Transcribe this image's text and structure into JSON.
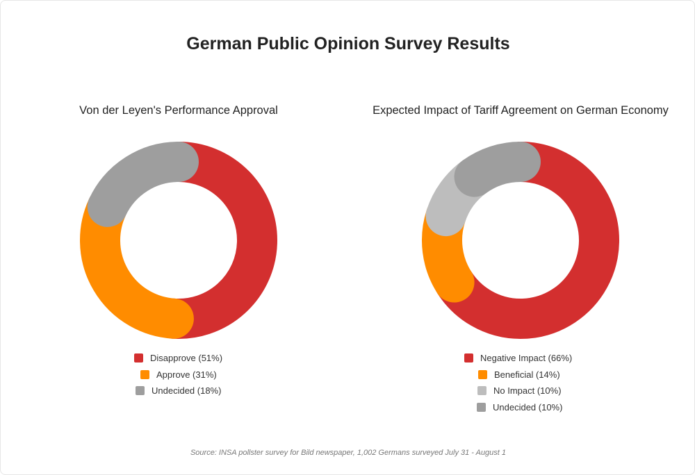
{
  "page": {
    "title": "German Public Opinion Survey Results",
    "source": "Source: INSA pollster survey for Bild newspaper, 1,002 Germans surveyed July 31 - August 1"
  },
  "chart_data": [
    {
      "type": "pie",
      "subtype": "donut",
      "title": "Von der Leyen's Performance Approval",
      "categories": [
        "Disapprove",
        "Approve",
        "Undecided"
      ],
      "values": [
        51,
        31,
        18
      ],
      "unit": "%",
      "colors": [
        "#d32f2f",
        "#ff8c00",
        "#9e9e9e"
      ],
      "legend": [
        "Disapprove (51%)",
        "Approve (31%)",
        "Undecided (18%)"
      ],
      "legend_position": "bottom"
    },
    {
      "type": "pie",
      "subtype": "donut",
      "title": "Expected Impact of Tariff Agreement on German Economy",
      "categories": [
        "Negative Impact",
        "Beneficial",
        "No Impact",
        "Undecided"
      ],
      "values": [
        66,
        14,
        10,
        10
      ],
      "unit": "%",
      "colors": [
        "#d32f2f",
        "#ff8c00",
        "#bdbdbd",
        "#9e9e9e"
      ],
      "legend": [
        "Negative Impact (66%)",
        "Beneficial (14%)",
        "No Impact (10%)",
        "Undecided (10%)"
      ],
      "legend_position": "bottom"
    }
  ]
}
